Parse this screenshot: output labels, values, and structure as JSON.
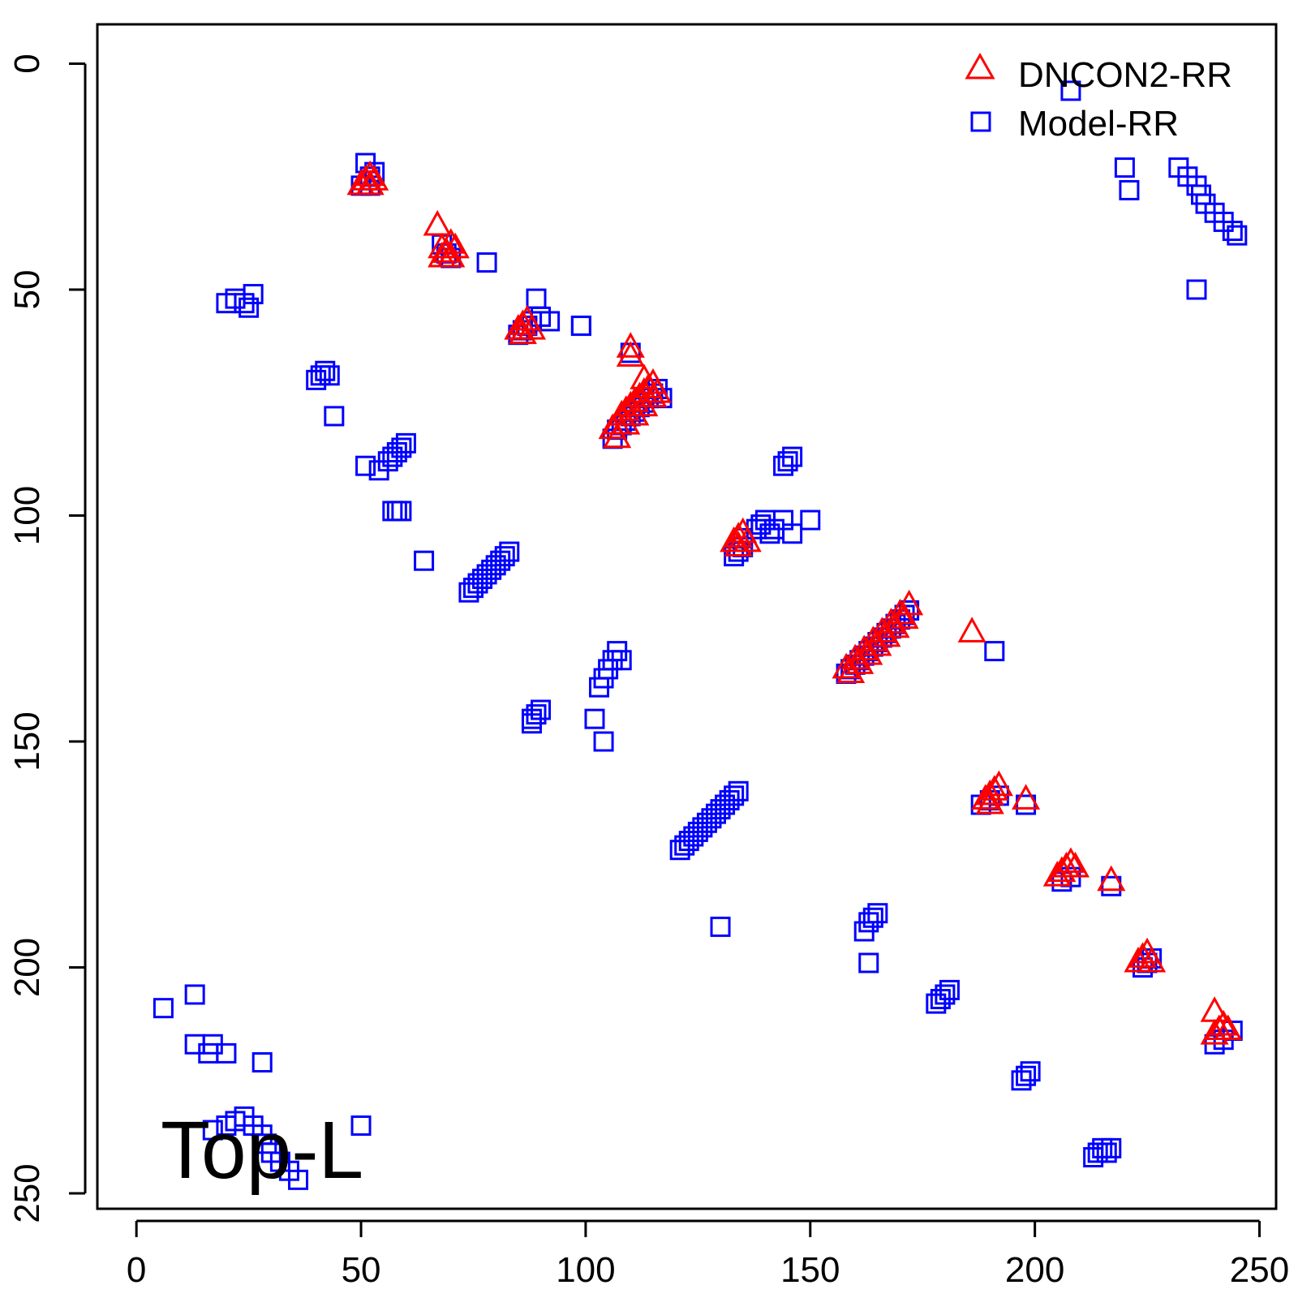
{
  "chart_data": {
    "type": "scatter",
    "title": "",
    "xlabel": "",
    "ylabel": "",
    "xlim": [
      -8.7,
      253.7
    ],
    "ylim": [
      253.4,
      -8.7
    ],
    "y_reversed": true,
    "grid": false,
    "legend_position": "top-right",
    "annotation": "Top-L",
    "x_ticks": [
      "0",
      "50",
      "100",
      "150",
      "200",
      "250"
    ],
    "y_ticks": [
      "0",
      "50",
      "100",
      "150",
      "200",
      "250"
    ],
    "series": [
      {
        "name": "DNCON2-RR",
        "marker": "triangle",
        "color": "#ff0000",
        "x": [
          51,
          52,
          53,
          50,
          52,
          67,
          68,
          69,
          70,
          71,
          68,
          69,
          70,
          85,
          86,
          87,
          88,
          86,
          110,
          110,
          113,
          106,
          107,
          108,
          109,
          110,
          111,
          112,
          113,
          114,
          115,
          116,
          107,
          109,
          111,
          113,
          115,
          133,
          134,
          135,
          136,
          134,
          158,
          160,
          162,
          164,
          166,
          168,
          170,
          172,
          159,
          161,
          163,
          165,
          167,
          169,
          171,
          186,
          189,
          190,
          191,
          192,
          190,
          198,
          205,
          206,
          207,
          208,
          209,
          217,
          223,
          224,
          225,
          226,
          240,
          240,
          241,
          242,
          243
        ],
        "y": [
          26,
          27,
          26,
          27,
          25,
          36,
          41,
          42,
          40,
          41,
          43,
          42,
          43,
          59,
          58,
          57,
          59,
          60,
          63,
          65,
          70,
          81,
          80,
          78,
          77,
          76,
          75,
          74,
          73,
          72,
          71,
          73,
          83,
          80,
          78,
          76,
          74,
          106,
          105,
          104,
          106,
          107,
          134,
          132,
          130,
          128,
          126,
          124,
          122,
          120,
          135,
          133,
          131,
          129,
          127,
          125,
          123,
          126,
          163,
          162,
          161,
          160,
          164,
          163,
          180,
          179,
          178,
          177,
          178,
          181,
          199,
          198,
          197,
          199,
          210,
          215,
          214,
          213,
          214
        ]
      },
      {
        "name": "Model-RR",
        "marker": "square",
        "color": "#0000ff",
        "x": [
          52,
          53,
          51,
          50,
          52,
          68,
          69,
          70,
          78,
          85,
          86,
          87,
          88,
          89,
          90,
          92,
          99,
          110,
          106,
          107,
          108,
          109,
          110,
          111,
          112,
          113,
          114,
          115,
          116,
          117,
          20,
          22,
          24,
          26,
          25,
          40,
          41,
          42,
          43,
          44,
          51,
          54,
          56,
          57,
          58,
          59,
          60,
          57,
          58,
          59,
          64,
          74,
          75,
          76,
          77,
          78,
          79,
          80,
          81,
          82,
          83,
          88,
          89,
          90,
          88,
          99,
          103,
          104,
          105,
          106,
          107,
          108,
          102,
          104,
          130,
          121,
          122,
          123,
          124,
          125,
          126,
          127,
          128,
          129,
          130,
          131,
          132,
          133,
          134,
          134,
          135,
          133,
          135,
          138,
          139,
          140,
          141,
          142,
          144,
          146,
          150,
          144,
          145,
          146,
          158,
          159,
          160,
          161,
          162,
          163,
          164,
          165,
          166,
          167,
          168,
          169,
          170,
          171,
          172,
          191,
          188,
          190,
          192,
          198,
          206,
          208,
          217,
          220,
          221,
          208,
          232,
          234,
          236,
          237,
          238,
          240,
          242,
          244,
          245,
          236,
          224,
          225,
          226,
          240,
          242,
          244,
          162,
          163,
          164,
          165,
          163,
          178,
          179,
          180,
          181,
          197,
          198,
          199,
          213,
          214,
          215,
          216,
          217,
          6,
          13,
          13,
          16,
          17,
          20,
          28,
          17,
          20,
          22,
          24,
          26,
          28,
          29,
          30,
          32,
          34,
          36,
          50
        ],
        "y": [
          25,
          24,
          22,
          27,
          27,
          40,
          42,
          43,
          44,
          60,
          59,
          58,
          57,
          52,
          56,
          57,
          58,
          64,
          83,
          81,
          80,
          79,
          78,
          77,
          76,
          75,
          74,
          73,
          72,
          74,
          53,
          52,
          53,
          51,
          54,
          70,
          69,
          68,
          69,
          78,
          89,
          90,
          88,
          87,
          86,
          85,
          84,
          99,
          99,
          99,
          110,
          117,
          116,
          115,
          114,
          113,
          112,
          111,
          110,
          109,
          108,
          145,
          144,
          143,
          146,
          58,
          138,
          136,
          134,
          132,
          130,
          132,
          145,
          150,
          191,
          174,
          173,
          172,
          171,
          170,
          169,
          168,
          167,
          166,
          165,
          164,
          163,
          162,
          161,
          108,
          107,
          109,
          105,
          103,
          102,
          101,
          104,
          103,
          101,
          104,
          101,
          89,
          88,
          87,
          135,
          134,
          133,
          132,
          131,
          130,
          129,
          128,
          127,
          126,
          125,
          124,
          123,
          122,
          121,
          130,
          164,
          163,
          162,
          164,
          181,
          180,
          182,
          23,
          28,
          6,
          23,
          25,
          27,
          29,
          31,
          33,
          35,
          37,
          38,
          50,
          200,
          199,
          198,
          217,
          216,
          214,
          192,
          190,
          189,
          188,
          199,
          208,
          207,
          206,
          205,
          225,
          224,
          223,
          242,
          241,
          240,
          241,
          240,
          209,
          206,
          217,
          219,
          217,
          219,
          221,
          236,
          235,
          234,
          233,
          235,
          237,
          239,
          241,
          243,
          245,
          247,
          235
        ]
      }
    ]
  }
}
